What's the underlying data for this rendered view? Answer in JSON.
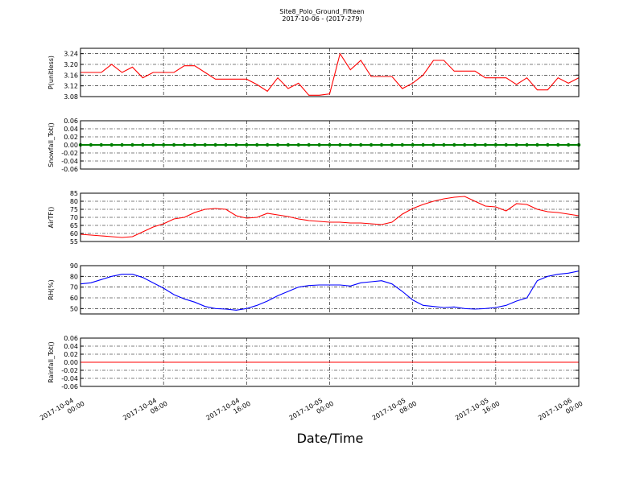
{
  "chart_data": {
    "type": "line",
    "title": "Site8_Polo_Ground_Fifteen",
    "subtitle": "2017-10-06 - (2017-279)",
    "xlabel": "Date/Time",
    "grid": true,
    "xlim": [
      "2017-10-04 00:00",
      "2017-10-06 00:00"
    ],
    "xticks": [
      "2017-10-04 00:00",
      "2017-10-04 08:00",
      "2017-10-04 16:00",
      "2017-10-05 00:00",
      "2017-10-05 08:00",
      "2017-10-05 16:00",
      "2017-10-06 00:00"
    ],
    "x": [
      "2017-10-04 00:00",
      "2017-10-04 01:00",
      "2017-10-04 02:00",
      "2017-10-04 03:00",
      "2017-10-04 04:00",
      "2017-10-04 05:00",
      "2017-10-04 06:00",
      "2017-10-04 07:00",
      "2017-10-04 08:00",
      "2017-10-04 09:00",
      "2017-10-04 10:00",
      "2017-10-04 11:00",
      "2017-10-04 12:00",
      "2017-10-04 13:00",
      "2017-10-04 14:00",
      "2017-10-04 15:00",
      "2017-10-04 16:00",
      "2017-10-04 17:00",
      "2017-10-04 18:00",
      "2017-10-04 19:00",
      "2017-10-04 20:00",
      "2017-10-04 21:00",
      "2017-10-04 22:00",
      "2017-10-04 23:00",
      "2017-10-05 00:00",
      "2017-10-05 01:00",
      "2017-10-05 02:00",
      "2017-10-05 03:00",
      "2017-10-05 04:00",
      "2017-10-05 05:00",
      "2017-10-05 06:00",
      "2017-10-05 07:00",
      "2017-10-05 08:00",
      "2017-10-05 09:00",
      "2017-10-05 10:00",
      "2017-10-05 11:00",
      "2017-10-05 12:00",
      "2017-10-05 13:00",
      "2017-10-05 14:00",
      "2017-10-05 15:00",
      "2017-10-05 16:00",
      "2017-10-05 17:00",
      "2017-10-05 18:00",
      "2017-10-05 19:00",
      "2017-10-05 20:00",
      "2017-10-05 21:00",
      "2017-10-05 22:00",
      "2017-10-05 23:00",
      "2017-10-06 00:00"
    ],
    "panels": [
      {
        "ylabel": "P(unitless)",
        "ylim": [
          3.08,
          3.26
        ],
        "yticks": [
          3.08,
          3.12,
          3.16,
          {
            "value": 3.2,
            "label": "3.20"
          },
          3.24
        ],
        "series": [
          {
            "color": "#ff0000",
            "markers": false,
            "values": [
              3.17,
              3.17,
              3.17,
              3.2,
              3.17,
              3.19,
              3.15,
              3.17,
              3.17,
              3.17,
              3.195,
              3.195,
              3.17,
              3.145,
              3.145,
              3.145,
              3.145,
              3.125,
              3.1,
              3.15,
              3.11,
              3.13,
              3.085,
              3.085,
              3.09,
              3.24,
              3.18,
              3.215,
              3.155,
              3.155,
              3.155,
              3.11,
              3.13,
              3.16,
              3.215,
              3.215,
              3.175,
              3.175,
              3.175,
              3.15,
              3.15,
              3.15,
              3.125,
              3.15,
              3.105,
              3.105,
              3.15,
              3.13,
              3.15
            ]
          }
        ]
      },
      {
        "ylabel": "Snowfall_Tot()",
        "ylim": [
          -0.06,
          0.06
        ],
        "yticks": [
          -0.06,
          -0.04,
          -0.02,
          {
            "value": 0,
            "label": "0.00"
          },
          0.02,
          0.04,
          0.06
        ],
        "series": [
          {
            "color": "#008000",
            "markers": true,
            "values": [
              0,
              0,
              0,
              0,
              0,
              0,
              0,
              0,
              0,
              0,
              0,
              0,
              0,
              0,
              0,
              0,
              0,
              0,
              0,
              0,
              0,
              0,
              0,
              0,
              0,
              0,
              0,
              0,
              0,
              0,
              0,
              0,
              0,
              0,
              0,
              0,
              0,
              0,
              0,
              0,
              0,
              0,
              0,
              0,
              0,
              0,
              0,
              0,
              0
            ]
          }
        ]
      },
      {
        "ylabel": "AirTF()",
        "ylim": [
          55,
          85
        ],
        "yticks": [
          55,
          60,
          65,
          70,
          75,
          80,
          85
        ],
        "series": [
          {
            "color": "#ff0000",
            "markers": false,
            "values": [
              59.5,
              59,
              58.5,
              58,
              57.5,
              58,
              61,
              64,
              66,
              69,
              70,
              73,
              75,
              75.5,
              75,
              71,
              69.5,
              70,
              72.5,
              71.5,
              70.5,
              69,
              68,
              67.5,
              67,
              67,
              66.5,
              66.5,
              66,
              65.5,
              67,
              72,
              75.5,
              78,
              80,
              81.5,
              82.5,
              83,
              80,
              77,
              76.5,
              74,
              78.5,
              78,
              75,
              73.5,
              73,
              72,
              71
            ]
          }
        ]
      },
      {
        "ylabel": "RH(%)",
        "ylim": [
          45,
          90
        ],
        "yticks": [
          50,
          60,
          70,
          80,
          90
        ],
        "series": [
          {
            "color": "#0000ff",
            "markers": false,
            "values": [
              73,
              74,
              77,
              80,
              82,
              82,
              79,
              74,
              69,
              63,
              59,
              56,
              52,
              50,
              49.5,
              48.5,
              50,
              53,
              57,
              62,
              66,
              70,
              71.5,
              72,
              72,
              72,
              71,
              74,
              75,
              76,
              73,
              66,
              58,
              53,
              52,
              51,
              51.5,
              50,
              49.5,
              50,
              51,
              53,
              57,
              60,
              76,
              80,
              82,
              83,
              85
            ]
          }
        ]
      },
      {
        "ylabel": "Rainfall_Tot()",
        "ylim": [
          -0.06,
          0.06
        ],
        "yticks": [
          -0.06,
          -0.04,
          -0.02,
          {
            "value": 0,
            "label": "0.00"
          },
          0.02,
          0.04,
          0.06
        ],
        "series": [
          {
            "color": "#ff0000",
            "markers": false,
            "values": [
              0,
              0,
              0,
              0,
              0,
              0,
              0,
              0,
              0,
              0,
              0,
              0,
              0,
              0,
              0,
              0,
              0,
              0,
              0,
              0,
              0,
              0,
              0,
              0,
              0,
              0,
              0,
              0,
              0,
              0,
              0,
              0,
              0,
              0,
              0,
              0,
              0,
              0,
              0,
              0,
              0,
              0,
              0,
              0,
              0,
              0,
              0,
              0,
              0
            ]
          }
        ]
      }
    ]
  }
}
